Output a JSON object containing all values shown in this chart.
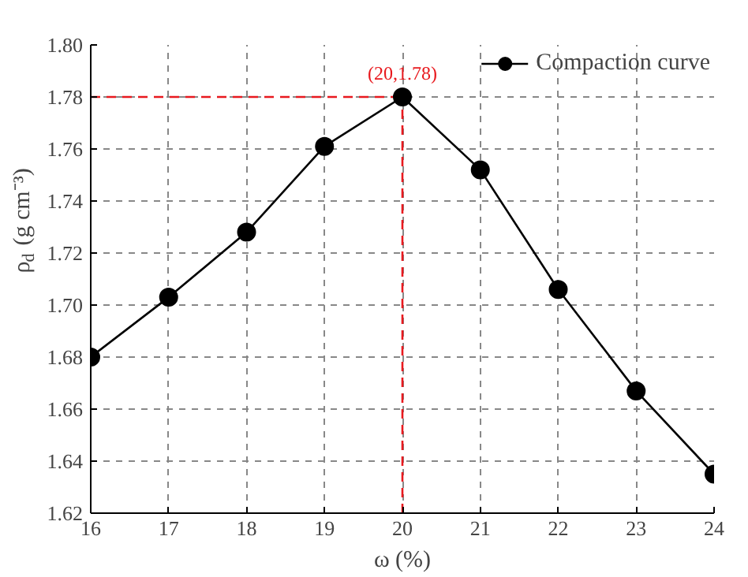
{
  "chart_data": {
    "type": "line",
    "xlabel": "ω (%)",
    "ylabel": "ρ$_{d}$ (g cm⁻³)",
    "x": [
      16,
      17,
      18,
      19,
      20,
      21,
      22,
      23,
      24
    ],
    "series": [
      {
        "name": "Compaction curve",
        "color": "#000000",
        "values": [
          1.68,
          1.703,
          1.728,
          1.761,
          1.78,
          1.752,
          1.706,
          1.667,
          1.635
        ]
      }
    ],
    "xlim": [
      16,
      24
    ],
    "xticks": [
      16,
      17,
      18,
      19,
      20,
      21,
      22,
      23,
      24
    ],
    "ylim": [
      1.62,
      1.8
    ],
    "yticks": [
      {
        "value": 1.62,
        "label": "1.62"
      },
      {
        "value": 1.64,
        "label": "1.64"
      },
      {
        "value": 1.66,
        "label": "1.66"
      },
      {
        "value": 1.68,
        "label": "1.68"
      },
      {
        "value": 1.7,
        "label": "1.70"
      },
      {
        "value": 1.72,
        "label": "1.72"
      },
      {
        "value": 1.74,
        "label": "1.74"
      },
      {
        "value": 1.76,
        "label": "1.76"
      },
      {
        "value": 1.78,
        "label": "1.78"
      },
      {
        "value": 1.8,
        "label": "1.80"
      }
    ],
    "ref_lines": [
      {
        "axis": "y",
        "value": 1.78,
        "color": "#e8191e",
        "line_style": "dashed"
      },
      {
        "axis": "x",
        "value": 20,
        "color": "#e8191e",
        "line_style": "dashed"
      }
    ],
    "annotations": [
      {
        "text": "(20,1.78)",
        "x": 20,
        "y": 1.78
      }
    ],
    "grid": true,
    "legend": "top right",
    "marker": "circle",
    "line_style": "solid"
  }
}
